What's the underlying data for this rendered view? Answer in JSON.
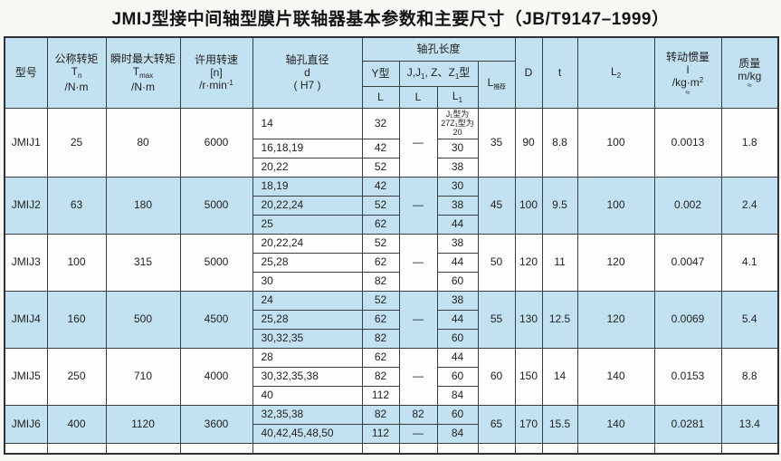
{
  "page": {
    "title": "JMIJ型接中间轴型膜片联轴器基本参数和主要尺寸（JB/T9147–1999）"
  },
  "colors": {
    "row_highlight": "#c2e2f1",
    "row_plain": "#fdfdfc",
    "border": "#3a3e41",
    "title_text": "#141414"
  },
  "header": {
    "model": "型号",
    "nominal_torque": {
      "title": "公称转矩",
      "sym": "T",
      "sub": "n",
      "unit": "/N·m"
    },
    "max_torque": {
      "title": "瞬时最大转矩",
      "sym": "T",
      "sub": "max",
      "unit": "/N·m"
    },
    "speed": {
      "title": "许用转速",
      "line2": "[n]",
      "unit_base": "/r·min",
      "unit_sup": "-1"
    },
    "bore_diameter": {
      "title": "轴孔直径",
      "sym": "d",
      "unit": "( H7 )"
    },
    "bore_length_group": "轴孔长度",
    "y_type": "Y型",
    "jz_type": {
      "p1": "J,J",
      "s1": "1",
      "p2": ", Z、Z",
      "s2": "1",
      "p3": "型"
    },
    "y_L": "L",
    "jz_L": "L",
    "jz_L1": {
      "sym": "L",
      "sub": "1"
    },
    "l_rec": {
      "sym": "L",
      "sub": "推荐"
    },
    "D": "D",
    "t": "t",
    "L2": {
      "sym": "L",
      "sub": "2"
    },
    "inertia": {
      "title": "转动惯量",
      "sym": "I",
      "unit_base": "/kg·m",
      "unit_sup": "2",
      "approx": "≈"
    },
    "mass": {
      "title": "质量",
      "line2": "m/kg",
      "approx": "≈"
    }
  },
  "table": {
    "groups": [
      {
        "model": "JMIJ1",
        "tn": "25",
        "tmax": "80",
        "n": "6000",
        "jl_merged": "—",
        "l_rec": "35",
        "D": "90",
        "t": "8.8",
        "L2": "100",
        "inertia": "0.0013",
        "mass": "1.8",
        "shade": false,
        "sub": [
          {
            "d": "14",
            "yl": "32",
            "l1": "J₁型为27Z₁型为20",
            "l1_small": true
          },
          {
            "d": "16,18,19",
            "yl": "42",
            "l1": "30"
          },
          {
            "d": "20,22",
            "yl": "52",
            "l1": "38"
          }
        ]
      },
      {
        "model": "JMIJ2",
        "tn": "63",
        "tmax": "180",
        "n": "5000",
        "jl_merged": "—",
        "l_rec": "45",
        "D": "100",
        "t": "9.5",
        "L2": "100",
        "inertia": "0.002",
        "mass": "2.4",
        "shade": true,
        "sub": [
          {
            "d": "18,19",
            "yl": "42",
            "l1": "30"
          },
          {
            "d": "20,22,24",
            "yl": "52",
            "l1": "38"
          },
          {
            "d": "25",
            "yl": "62",
            "l1": "44"
          }
        ]
      },
      {
        "model": "JMIJ3",
        "tn": "100",
        "tmax": "315",
        "n": "5000",
        "jl_merged": "—",
        "l_rec": "50",
        "D": "120",
        "t": "11",
        "L2": "120",
        "inertia": "0.0047",
        "mass": "4.1",
        "shade": false,
        "sub": [
          {
            "d": "20,22,24",
            "yl": "52",
            "l1": "38"
          },
          {
            "d": "25,28",
            "yl": "62",
            "l1": "44"
          },
          {
            "d": "30",
            "yl": "82",
            "l1": "60"
          }
        ]
      },
      {
        "model": "JMIJ4",
        "tn": "160",
        "tmax": "500",
        "n": "4500",
        "jl_merged": "—",
        "l_rec": "55",
        "D": "130",
        "t": "12.5",
        "L2": "120",
        "inertia": "0.0069",
        "mass": "5.4",
        "shade": true,
        "sub": [
          {
            "d": "24",
            "yl": "52",
            "l1": "38"
          },
          {
            "d": "25,28",
            "yl": "62",
            "l1": "44"
          },
          {
            "d": "30,32,35",
            "yl": "82",
            "l1": "60"
          }
        ]
      },
      {
        "model": "JMIJ5",
        "tn": "250",
        "tmax": "710",
        "n": "4000",
        "jl_merged": "—",
        "l_rec": "60",
        "D": "150",
        "t": "14",
        "L2": "140",
        "inertia": "0.0153",
        "mass": "8.8",
        "shade": false,
        "sub": [
          {
            "d": "28",
            "yl": "62",
            "l1": "44"
          },
          {
            "d": "30,32,35,38",
            "yl": "82",
            "l1": "60"
          },
          {
            "d": "40",
            "yl": "112",
            "l1": "84"
          }
        ]
      },
      {
        "model": "JMIJ6",
        "tn": "400",
        "tmax": "1120",
        "n": "3600",
        "jl_merged": null,
        "l_rec": "65",
        "D": "170",
        "t": "15.5",
        "L2": "140",
        "inertia": "0.0281",
        "mass": "13.4",
        "shade": true,
        "sub": [
          {
            "d": "32,35,38",
            "yl": "82",
            "jl": "82",
            "l1": "60"
          },
          {
            "d": "40,42,45,48,50",
            "yl": "112",
            "jl": "—",
            "l1": "84"
          }
        ]
      }
    ]
  }
}
